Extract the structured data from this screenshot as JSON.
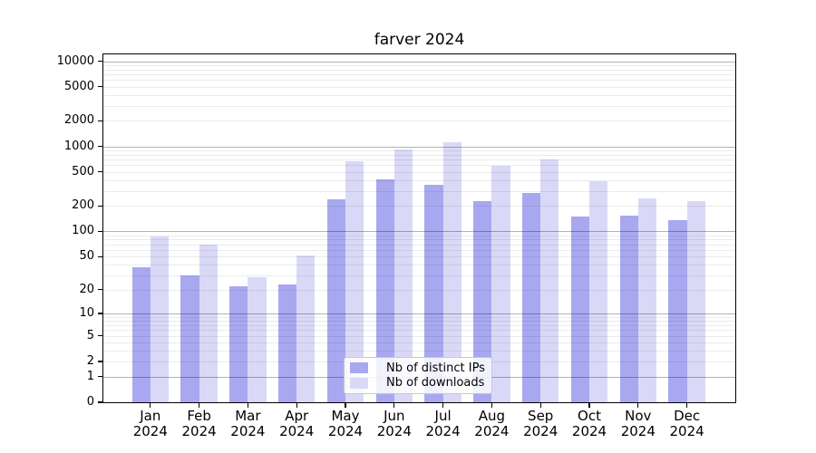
{
  "chart_data": {
    "type": "bar",
    "title": "farver 2024",
    "categories": [
      "Jan 2024",
      "Feb 2024",
      "Mar 2024",
      "Apr 2024",
      "May 2024",
      "Jun 2024",
      "Jul 2024",
      "Aug 2024",
      "Sep 2024",
      "Oct 2024",
      "Nov 2024",
      "Dec 2024"
    ],
    "months": [
      "Jan",
      "Feb",
      "Mar",
      "Apr",
      "May",
      "Jun",
      "Jul",
      "Aug",
      "Sep",
      "Oct",
      "Nov",
      "Dec"
    ],
    "year_label": "2024",
    "series": [
      {
        "name": "Nb of distinct IPs",
        "color": "#a8a8f0",
        "values": [
          37,
          30,
          22,
          23,
          237,
          405,
          350,
          225,
          285,
          150,
          153,
          135
        ]
      },
      {
        "name": "Nb of downloads",
        "color": "#d9d9f7",
        "values": [
          87,
          70,
          28,
          52,
          670,
          930,
          1120,
          585,
          700,
          390,
          242,
          228
        ]
      }
    ],
    "xlabel": "",
    "ylabel": "",
    "yscale": "log1p",
    "ylim": [
      0,
      12000
    ],
    "y_ticks": [
      0,
      1,
      2,
      5,
      10,
      20,
      50,
      100,
      200,
      500,
      1000,
      2000,
      5000,
      10000
    ],
    "y_major_gridlines": [
      1,
      10,
      100,
      1000,
      10000
    ],
    "grid": "on",
    "legend_position": "lower center inside plot",
    "bar_layout": "paired bars centered on each month tick, distinct-IPs bar left, downloads bar right"
  },
  "colors": {
    "background": "#ffffff",
    "axis": "#000000",
    "minor_grid": "#ebebeb",
    "major_grid": "#b3b3b3",
    "legend_border": "#c8c8c8"
  }
}
